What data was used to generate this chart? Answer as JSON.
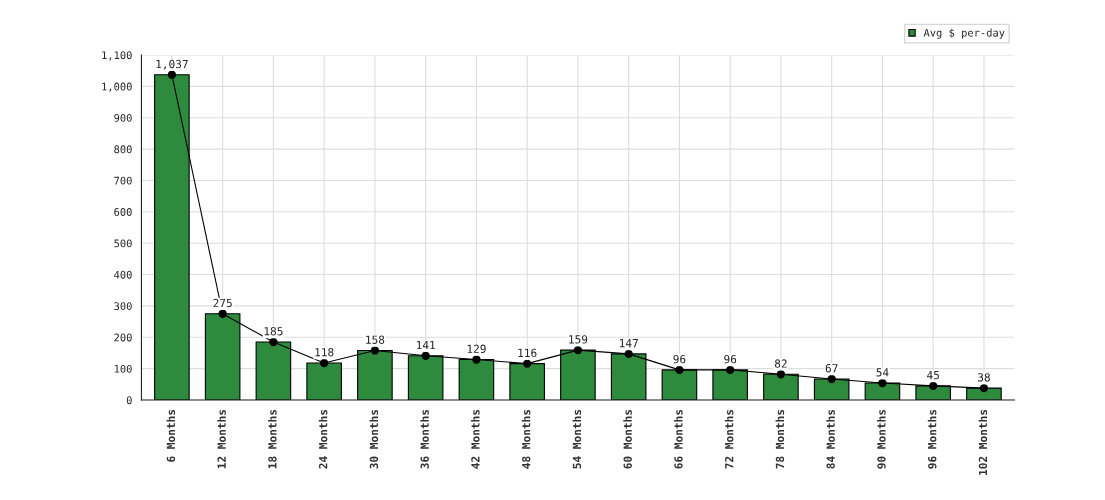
{
  "chart_data": {
    "type": "bar",
    "categories": [
      "6 Months",
      "12 Months",
      "18 Months",
      "24 Months",
      "30 Months",
      "36 Months",
      "42 Months",
      "48 Months",
      "54 Months",
      "60 Months",
      "66 Months",
      "72 Months",
      "78 Months",
      "84 Months",
      "90 Months",
      "96 Months",
      "102 Months"
    ],
    "series": [
      {
        "name": "Avg $ per-day",
        "color": "#2e8b3e",
        "values": [
          1037,
          275,
          185,
          118,
          158,
          141,
          129,
          116,
          159,
          147,
          96,
          96,
          82,
          67,
          54,
          45,
          38
        ],
        "value_labels": [
          "1,037",
          "275",
          "185",
          "118",
          "158",
          "141",
          "129",
          "116",
          "159",
          "147",
          "96",
          "96",
          "82",
          "67",
          "54",
          "45",
          "38"
        ]
      },
      {
        "type": "line",
        "color": "#000000",
        "marker": "circle",
        "values": [
          1037,
          275,
          185,
          118,
          158,
          141,
          129,
          116,
          159,
          147,
          96,
          96,
          82,
          67,
          54,
          45,
          38
        ]
      }
    ],
    "ylim": [
      0,
      1100
    ],
    "yticks": [
      0,
      100,
      200,
      300,
      400,
      500,
      600,
      700,
      800,
      900,
      {
        "value": 1000,
        "label": "1,000"
      },
      {
        "value": 1100,
        "label": "1,100"
      }
    ],
    "grid": true,
    "legend": "top right"
  }
}
